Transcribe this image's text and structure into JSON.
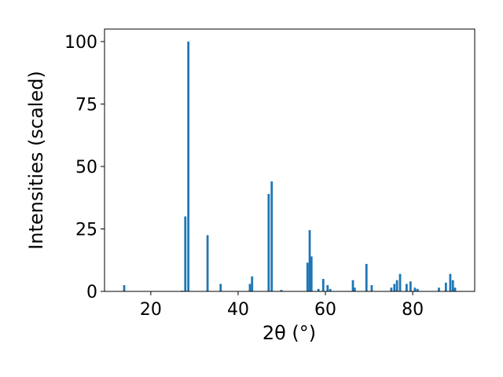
{
  "chart_data": {
    "type": "bar",
    "x": [
      13.9,
      27.2,
      27.9,
      28.6,
      33.0,
      36.0,
      42.7,
      43.2,
      47.0,
      47.7,
      49.9,
      55.9,
      56.4,
      56.8,
      58.4,
      59.5,
      60.5,
      61.1,
      66.3,
      66.7,
      69.4,
      70.6,
      75.1,
      75.8,
      76.4,
      77.1,
      78.6,
      79.5,
      80.5,
      81.1,
      86.0,
      87.6,
      88.6,
      89.2,
      89.7
    ],
    "values": [
      2.5,
      0.3,
      30,
      100,
      22.5,
      3,
      3,
      6,
      39,
      44,
      0.6,
      11.5,
      24.5,
      14,
      1,
      5,
      2.5,
      1,
      4.5,
      1.5,
      11,
      2.5,
      1.5,
      3,
      4.5,
      7,
      3,
      4,
      1.5,
      1,
      1.5,
      3.5,
      7,
      4.5,
      1.5
    ],
    "color": "#1f77b4",
    "xlabel": "2θ (°)",
    "ylabel": "Intensities (scaled)",
    "xlim": [
      9.4,
      94.2
    ],
    "xticks": [
      20,
      40,
      60,
      80
    ],
    "ylim": [
      0,
      105
    ],
    "yticks": [
      0,
      25,
      50,
      75,
      100
    ]
  }
}
